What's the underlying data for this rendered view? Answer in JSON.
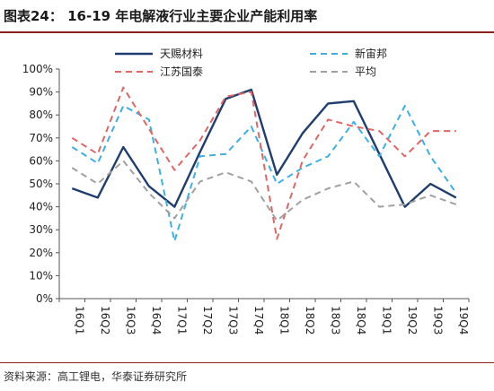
{
  "header": {
    "title": "图表24：  16-19 年电解液行业主要企业产能利用率"
  },
  "footer": {
    "source": "资料来源：高工锂电，华泰证券研究所"
  },
  "chart_data": {
    "type": "line",
    "title": "",
    "xlabel": "",
    "ylabel": "",
    "ylim": [
      0,
      100
    ],
    "y_ticks": [
      "0%",
      "10%",
      "20%",
      "30%",
      "40%",
      "50%",
      "60%",
      "70%",
      "80%",
      "90%",
      "100%"
    ],
    "categories": [
      "16Q1",
      "16Q2",
      "16Q3",
      "16Q4",
      "17Q1",
      "17Q2",
      "17Q3",
      "17Q4",
      "18Q1",
      "18Q2",
      "18Q3",
      "18Q4",
      "19Q1",
      "19Q2",
      "19Q3",
      "19Q4"
    ],
    "legend_position": "top",
    "grid": false,
    "series": [
      {
        "name": "天赐材料",
        "color": "#1f3d6e",
        "style": "solid",
        "values": [
          48,
          44,
          66,
          49,
          40,
          64,
          87,
          91,
          54,
          72,
          85,
          86,
          63,
          40,
          50,
          44
        ]
      },
      {
        "name": "新宙邦",
        "color": "#3ab0e6",
        "style": "dashed",
        "values": [
          66,
          59,
          84,
          78,
          25,
          62,
          63,
          75,
          50,
          57,
          62,
          77,
          62,
          84,
          62,
          46
        ]
      },
      {
        "name": "江苏国泰",
        "color": "#e06666",
        "style": "dashed",
        "values": [
          70,
          63,
          92,
          74,
          56,
          69,
          88,
          90,
          26,
          60,
          78,
          75,
          73,
          62,
          73,
          73
        ]
      },
      {
        "name": "平均",
        "color": "#a0a0a0",
        "style": "dashed",
        "values": [
          57,
          50,
          60,
          46,
          35,
          51,
          55,
          51,
          34,
          43,
          48,
          51,
          40,
          41,
          45,
          41
        ]
      }
    ]
  }
}
